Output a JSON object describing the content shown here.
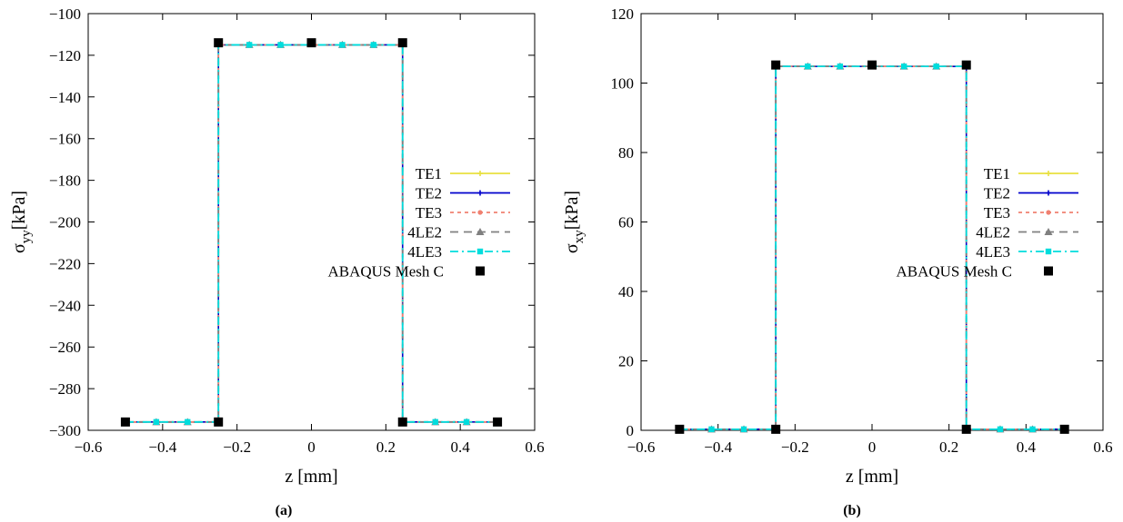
{
  "chart_data": [
    {
      "id": "a",
      "type": "line",
      "caption": "(a)",
      "xlabel": "z [mm]",
      "ylabel_main": "σ",
      "ylabel_sub": "yy",
      "ylabel_unit": "[kPa]",
      "xlim": [
        -0.6,
        0.6
      ],
      "ylim": [
        -300,
        -100
      ],
      "xticks": [
        -0.6,
        -0.4,
        -0.2,
        0,
        0.2,
        0.4,
        0.6
      ],
      "yticks": [
        -300,
        -280,
        -260,
        -240,
        -220,
        -200,
        -180,
        -160,
        -140,
        -120,
        -100
      ],
      "xtick_labels": [
        "−0.6",
        "−0.4",
        "−0.2",
        "0",
        "0.2",
        "0.4",
        "0.6"
      ],
      "ytick_labels": [
        "−300",
        "−280",
        "−260",
        "−240",
        "−220",
        "−200",
        "−180",
        "−160",
        "−140",
        "−120",
        "−100"
      ],
      "legend_position": "center-right",
      "series": [
        {
          "name": "TE1",
          "style": "solid",
          "color": "#e8e040",
          "marker": "plus",
          "x": [
            -0.5,
            -0.417,
            -0.333,
            -0.25,
            -0.25,
            -0.167,
            -0.083,
            0,
            0.083,
            0.167,
            0.245,
            0.245,
            0.333,
            0.417,
            0.5
          ],
          "y": [
            -296,
            -296,
            -296,
            -296,
            -115,
            -115,
            -115,
            -115,
            -115,
            -115,
            -115,
            -296,
            -296,
            -296,
            -296
          ]
        },
        {
          "name": "TE2",
          "style": "solid",
          "color": "#0000cc",
          "marker": "plus",
          "x": [
            -0.5,
            -0.417,
            -0.333,
            -0.25,
            -0.25,
            -0.167,
            -0.083,
            0,
            0.083,
            0.167,
            0.245,
            0.245,
            0.333,
            0.417,
            0.5
          ],
          "y": [
            -296,
            -296,
            -296,
            -296,
            -115,
            -115,
            -115,
            -115,
            -115,
            -115,
            -115,
            -296,
            -296,
            -296,
            -296
          ]
        },
        {
          "name": "TE3",
          "style": "dotted",
          "color": "#f08070",
          "marker": "circle",
          "x": [
            -0.5,
            -0.417,
            -0.333,
            -0.25,
            -0.25,
            -0.167,
            -0.083,
            0,
            0.083,
            0.167,
            0.245,
            0.245,
            0.333,
            0.417,
            0.5
          ],
          "y": [
            -296,
            -296,
            -296,
            -296,
            -115,
            -115,
            -115,
            -115,
            -115,
            -115,
            -115,
            -296,
            -296,
            -296,
            -296
          ]
        },
        {
          "name": "4LE2",
          "style": "dashed",
          "color": "#808080",
          "marker": "triangle",
          "x": [
            -0.5,
            -0.417,
            -0.333,
            -0.25,
            -0.25,
            -0.167,
            -0.083,
            0,
            0.083,
            0.167,
            0.245,
            0.245,
            0.333,
            0.417,
            0.5
          ],
          "y": [
            -296,
            -296,
            -296,
            -296,
            -115,
            -115,
            -115,
            -115,
            -115,
            -115,
            -115,
            -296,
            -296,
            -296,
            -296
          ]
        },
        {
          "name": "4LE3",
          "style": "dashdot",
          "color": "#00dddd",
          "marker": "square",
          "x": [
            -0.5,
            -0.417,
            -0.333,
            -0.25,
            -0.25,
            -0.167,
            -0.083,
            0,
            0.083,
            0.167,
            0.245,
            0.245,
            0.333,
            0.417,
            0.5
          ],
          "y": [
            -296,
            -296,
            -296,
            -296,
            -115,
            -115,
            -115,
            -115,
            -115,
            -115,
            -115,
            -296,
            -296,
            -296,
            -296
          ]
        },
        {
          "name": "ABAQUS Mesh C",
          "style": "none",
          "color": "#000000",
          "marker": "bigsquare",
          "x": [
            -0.5,
            -0.25,
            0,
            0.245,
            0.5,
            -0.25,
            0.245
          ],
          "y": [
            -296,
            -296,
            -114,
            -296,
            -296,
            -114,
            -114
          ]
        }
      ]
    },
    {
      "id": "b",
      "type": "line",
      "caption": "(b)",
      "xlabel": "z [mm]",
      "ylabel_main": "σ",
      "ylabel_sub": "xy",
      "ylabel_unit": "[kPa]",
      "xlim": [
        -0.6,
        0.6
      ],
      "ylim": [
        0,
        120
      ],
      "xticks": [
        -0.6,
        -0.4,
        -0.2,
        0,
        0.2,
        0.4,
        0.6
      ],
      "yticks": [
        0,
        20,
        40,
        60,
        80,
        100,
        120
      ],
      "xtick_labels": [
        "−0.6",
        "−0.4",
        "−0.2",
        "0",
        "0.2",
        "0.4",
        "0.6"
      ],
      "ytick_labels": [
        "0",
        "20",
        "40",
        "60",
        "80",
        "100",
        "120"
      ],
      "legend_position": "center-right",
      "series": [
        {
          "name": "TE1",
          "style": "solid",
          "color": "#e8e040",
          "marker": "plus",
          "x": [
            -0.5,
            -0.417,
            -0.333,
            -0.25,
            -0.25,
            -0.167,
            -0.083,
            0,
            0.083,
            0.167,
            0.245,
            0.245,
            0.333,
            0.417,
            0.5
          ],
          "y": [
            0.3,
            0.3,
            0.3,
            0.3,
            104.8,
            104.8,
            104.8,
            104.8,
            104.8,
            104.8,
            104.8,
            0.3,
            0.3,
            0.3,
            0.3
          ]
        },
        {
          "name": "TE2",
          "style": "solid",
          "color": "#0000cc",
          "marker": "plus",
          "x": [
            -0.5,
            -0.417,
            -0.333,
            -0.25,
            -0.25,
            -0.167,
            -0.083,
            0,
            0.083,
            0.167,
            0.245,
            0.245,
            0.333,
            0.417,
            0.5
          ],
          "y": [
            0.3,
            0.3,
            0.3,
            0.3,
            104.8,
            104.8,
            104.8,
            104.8,
            104.8,
            104.8,
            104.8,
            0.3,
            0.3,
            0.3,
            0.3
          ]
        },
        {
          "name": "TE3",
          "style": "dotted",
          "color": "#f08070",
          "marker": "circle",
          "x": [
            -0.5,
            -0.417,
            -0.333,
            -0.25,
            -0.25,
            -0.167,
            -0.083,
            0,
            0.083,
            0.167,
            0.245,
            0.245,
            0.333,
            0.417,
            0.5
          ],
          "y": [
            0.3,
            0.3,
            0.3,
            0.3,
            104.8,
            104.8,
            104.8,
            104.8,
            104.8,
            104.8,
            104.8,
            0.3,
            0.3,
            0.3,
            0.3
          ]
        },
        {
          "name": "4LE2",
          "style": "dashed",
          "color": "#808080",
          "marker": "triangle",
          "x": [
            -0.5,
            -0.417,
            -0.333,
            -0.25,
            -0.25,
            -0.167,
            -0.083,
            0,
            0.083,
            0.167,
            0.245,
            0.245,
            0.333,
            0.417,
            0.5
          ],
          "y": [
            0.3,
            0.3,
            0.3,
            0.3,
            104.8,
            104.8,
            104.8,
            104.8,
            104.8,
            104.8,
            104.8,
            0.3,
            0.3,
            0.3,
            0.3
          ]
        },
        {
          "name": "4LE3",
          "style": "dashdot",
          "color": "#00dddd",
          "marker": "square",
          "x": [
            -0.5,
            -0.417,
            -0.333,
            -0.25,
            -0.25,
            -0.167,
            -0.083,
            0,
            0.083,
            0.167,
            0.245,
            0.245,
            0.333,
            0.417,
            0.5
          ],
          "y": [
            0.3,
            0.3,
            0.3,
            0.3,
            104.8,
            104.8,
            104.8,
            104.8,
            104.8,
            104.8,
            104.8,
            0.3,
            0.3,
            0.3,
            0.3
          ]
        },
        {
          "name": "ABAQUS Mesh C",
          "style": "none",
          "color": "#000000",
          "marker": "bigsquare",
          "x": [
            -0.5,
            -0.25,
            0,
            0.245,
            0.5,
            -0.25,
            0.245
          ],
          "y": [
            0.3,
            0.3,
            105.2,
            0.3,
            0.3,
            105.2,
            105.2
          ]
        }
      ]
    }
  ]
}
